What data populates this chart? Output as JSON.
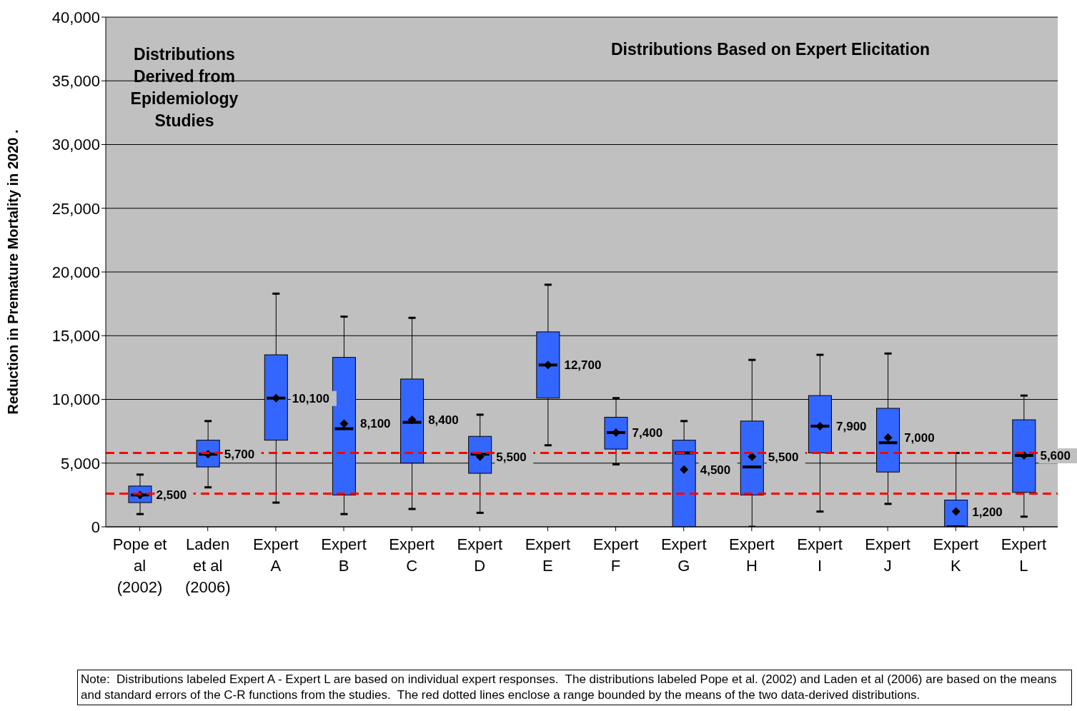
{
  "chart_data": {
    "type": "box",
    "ylabel": "Reduction in Premature Mortality in 2020 .",
    "categories": [
      "Pope et al (2002)",
      "Laden et al (2006)",
      "Expert A",
      "Expert B",
      "Expert C",
      "Expert D",
      "Expert E",
      "Expert F",
      "Expert G",
      "Expert H",
      "Expert I",
      "Expert J",
      "Expert K",
      "Expert L"
    ],
    "color": "#3366ff",
    "boxes": [
      {
        "low": 1000,
        "q1": 1900,
        "median": 2500,
        "q3": 3200,
        "high": 4100,
        "mean": 2500
      },
      {
        "low": 3100,
        "q1": 4700,
        "median": 5700,
        "q3": 6800,
        "high": 8300,
        "mean": 5700
      },
      {
        "low": 1900,
        "q1": 6800,
        "median": 10100,
        "q3": 13500,
        "high": 18300,
        "mean": 10100
      },
      {
        "low": 1000,
        "q1": 2500,
        "median": 7700,
        "q3": 13300,
        "high": 16500,
        "mean": 8100
      },
      {
        "low": 1400,
        "q1": 5000,
        "median": 8200,
        "q3": 11600,
        "high": 16400,
        "mean": 8400
      },
      {
        "low": 1100,
        "q1": 4200,
        "median": 5700,
        "q3": 7100,
        "high": 8800,
        "mean": 5500
      },
      {
        "low": 6400,
        "q1": 10100,
        "median": 12700,
        "q3": 15300,
        "high": 19000,
        "mean": 12700
      },
      {
        "low": 4900,
        "q1": 6100,
        "median": 7400,
        "q3": 8600,
        "high": 10100,
        "mean": 7400
      },
      {
        "low": 0,
        "q1": 0,
        "median": 5800,
        "q3": 6800,
        "high": 8300,
        "mean": 4500
      },
      {
        "low": 0,
        "q1": 2500,
        "median": 4700,
        "q3": 8300,
        "high": 13100,
        "mean": 5500
      },
      {
        "low": 1200,
        "q1": 5800,
        "median": 7900,
        "q3": 10300,
        "high": 13500,
        "mean": 7900
      },
      {
        "low": 1800,
        "q1": 4300,
        "median": 6600,
        "q3": 9300,
        "high": 13600,
        "mean": 7000
      },
      {
        "low": 0,
        "q1": 0,
        "median": 0,
        "q3": 2100,
        "high": 5800,
        "mean": 1200
      },
      {
        "low": 800,
        "q1": 2700,
        "median": 5600,
        "q3": 8400,
        "high": 10300,
        "mean": 5600
      }
    ],
    "value_labels": [
      "2,500",
      "5,700",
      "10,100",
      "8,100",
      "8,400",
      "5,500",
      "12,700",
      "7,400",
      "4,500",
      "5,500",
      "7,900",
      "7,000",
      "1,200",
      "5,600"
    ],
    "ylim": [
      0,
      40000
    ],
    "yticks": [
      0,
      {
        "value": 5000,
        "label": "5,000"
      },
      {
        "value": 10000,
        "label": "10,000"
      },
      {
        "value": 15000,
        "label": "15,000"
      },
      {
        "value": 20000,
        "label": "20,000"
      },
      {
        "value": 25000,
        "label": "25,000"
      },
      {
        "value": 30000,
        "label": "30,000"
      },
      {
        "value": 35000,
        "label": "35,000"
      },
      {
        "value": 40000,
        "label": "40,000"
      }
    ],
    "grid": "y",
    "ref_lines": [
      {
        "axis": "y",
        "value": 5800,
        "color": "#ff0000",
        "line_style": "dashed"
      },
      {
        "axis": "y",
        "value": 2600,
        "color": "#ff0000",
        "line_style": "dashed"
      }
    ],
    "annotations": [
      "Distributions Derived from Epidemiology Studies",
      "Distributions Based on Expert Elicitation",
      "Note:  Distributions labeled Expert A - Expert L are based on individual expert responses.  The distributions labeled Pope et al. (2002) and Laden et al (2006) are based on the means and standard errors of the C-R functions from the studies.  The red dotted lines enclose a range bounded by the means of the two data-derived distributions."
    ]
  }
}
